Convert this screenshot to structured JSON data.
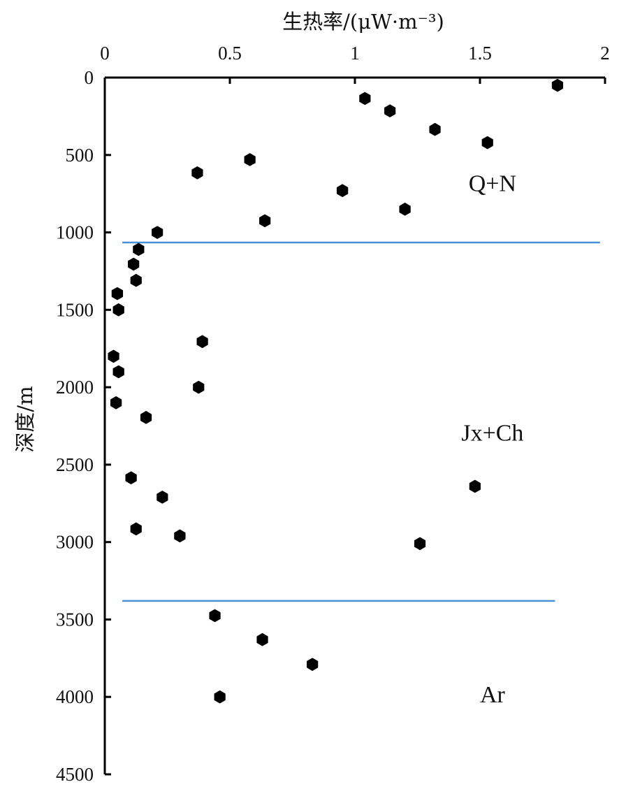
{
  "chart_data": {
    "type": "scatter",
    "x_axis": {
      "label": "生热率/(μW·m⁻³)",
      "range": [
        0,
        2
      ],
      "ticks": [
        0,
        0.5,
        1,
        1.5,
        2
      ],
      "tick_labels": [
        "0",
        "0.5",
        "1",
        "1.5",
        "2"
      ],
      "position": "top"
    },
    "y_axis": {
      "label": "深度/m",
      "range": [
        0,
        4500
      ],
      "inverted": true,
      "ticks": [
        0,
        500,
        1000,
        1500,
        2000,
        2500,
        3000,
        3500,
        4000,
        4500
      ],
      "tick_labels": [
        "0",
        "500",
        "1000",
        "1500",
        "2000",
        "2500",
        "3000",
        "3500",
        "4000",
        "4500"
      ]
    },
    "points": [
      {
        "x": 1.81,
        "y": 50
      },
      {
        "x": 1.04,
        "y": 135
      },
      {
        "x": 1.14,
        "y": 215
      },
      {
        "x": 1.32,
        "y": 335
      },
      {
        "x": 1.53,
        "y": 420
      },
      {
        "x": 0.58,
        "y": 530
      },
      {
        "x": 0.37,
        "y": 615
      },
      {
        "x": 0.95,
        "y": 730
      },
      {
        "x": 1.2,
        "y": 850
      },
      {
        "x": 0.64,
        "y": 925
      },
      {
        "x": 0.21,
        "y": 1000
      },
      {
        "x": 0.135,
        "y": 1110
      },
      {
        "x": 0.115,
        "y": 1205
      },
      {
        "x": 0.125,
        "y": 1310
      },
      {
        "x": 0.05,
        "y": 1395
      },
      {
        "x": 0.055,
        "y": 1500
      },
      {
        "x": 0.39,
        "y": 1705
      },
      {
        "x": 0.035,
        "y": 1800
      },
      {
        "x": 0.055,
        "y": 1900
      },
      {
        "x": 0.375,
        "y": 2000
      },
      {
        "x": 0.045,
        "y": 2100
      },
      {
        "x": 0.165,
        "y": 2195
      },
      {
        "x": 0.105,
        "y": 2585
      },
      {
        "x": 1.48,
        "y": 2640
      },
      {
        "x": 0.23,
        "y": 2710
      },
      {
        "x": 0.125,
        "y": 2915
      },
      {
        "x": 0.3,
        "y": 2960
      },
      {
        "x": 1.26,
        "y": 3010
      },
      {
        "x": 0.44,
        "y": 3475
      },
      {
        "x": 0.63,
        "y": 3630
      },
      {
        "x": 0.83,
        "y": 3790
      },
      {
        "x": 0.46,
        "y": 4000
      }
    ],
    "boundaries": [
      {
        "depth": 1065,
        "x_range": [
          0.07,
          1.98
        ],
        "color": "#4a90d6"
      },
      {
        "depth": 3380,
        "x_range": [
          0.07,
          1.8
        ],
        "color": "#4a90d6"
      }
    ],
    "zones": [
      {
        "label": "Q+N",
        "x": 1.55,
        "y": 680
      },
      {
        "label": "Jx+Ch",
        "x": 1.55,
        "y": 2290
      },
      {
        "label": "Ar",
        "x": 1.55,
        "y": 3980
      }
    ],
    "marker_color": "#000000",
    "grid": false,
    "legend": "none"
  }
}
